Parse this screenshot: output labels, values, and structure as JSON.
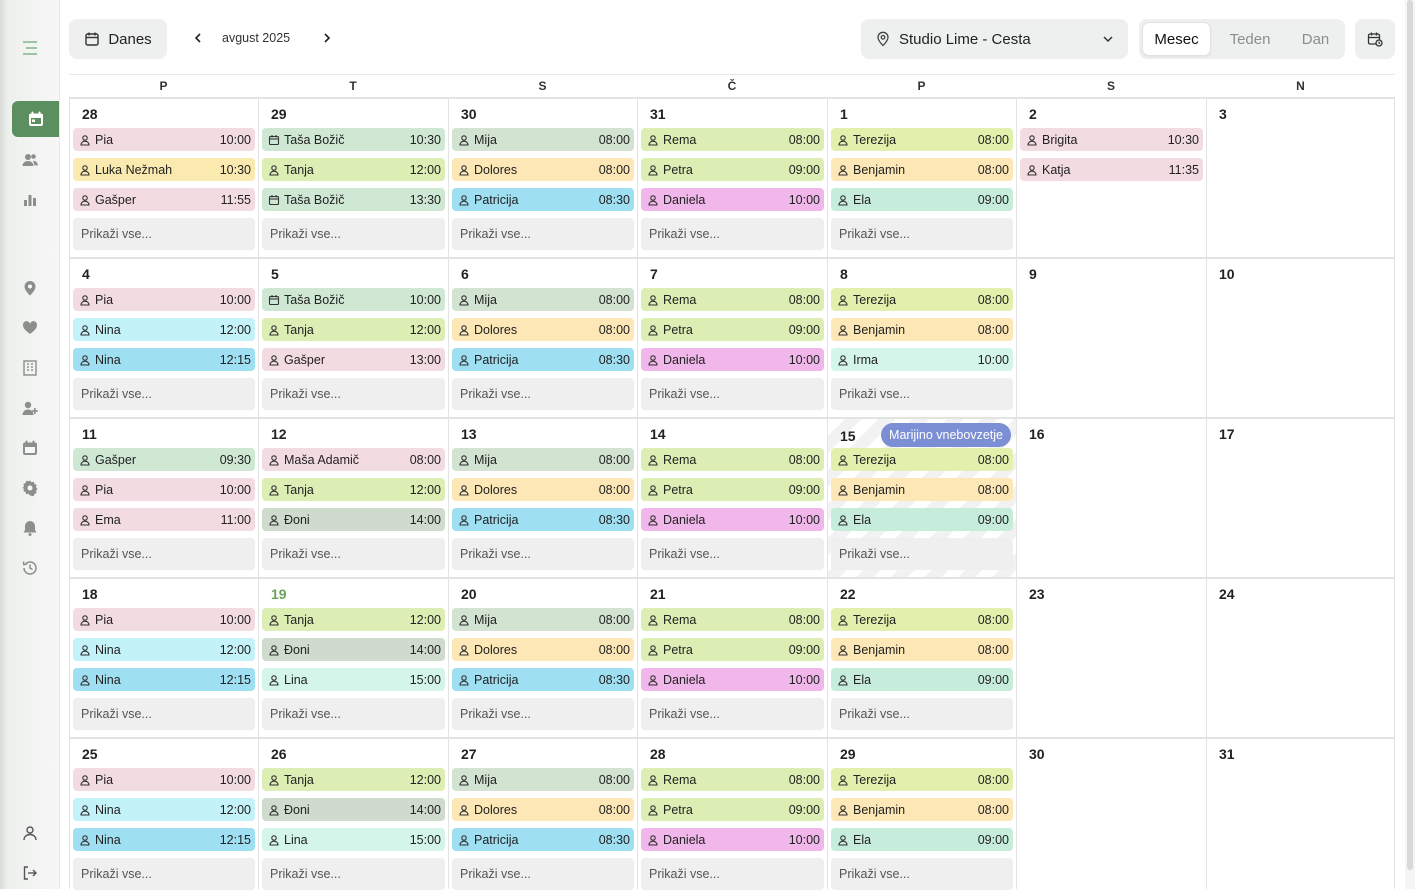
{
  "toolbar": {
    "today_label": "Danes",
    "month_label": "avgust 2025",
    "location": "Studio Lime - Cesta",
    "views": [
      "Mesec",
      "Teden",
      "Dan"
    ],
    "active_view": "Mesec"
  },
  "sidebar": {
    "items": [
      {
        "icon": "menu-icon"
      },
      {
        "icon": "calendar-icon",
        "active": true
      },
      {
        "icon": "users-icon"
      },
      {
        "icon": "bar-chart-icon"
      },
      {
        "icon": "location-pin-icon"
      },
      {
        "icon": "heart-hand-icon"
      },
      {
        "icon": "building-icon"
      },
      {
        "icon": "user-add-icon"
      },
      {
        "icon": "calendar-small-icon"
      },
      {
        "icon": "gear-icon"
      },
      {
        "icon": "bell-icon"
      },
      {
        "icon": "history-icon"
      },
      {
        "icon": "profile-icon"
      },
      {
        "icon": "logout-icon"
      }
    ]
  },
  "weekday_headers": [
    "P",
    "T",
    "S",
    "Č",
    "P",
    "S",
    "N"
  ],
  "show_more_label": "Prikaži vse...",
  "colors": {
    "pink": "#f3dbe2",
    "yellow": "#fbeab0",
    "green": "#cfe8d4",
    "lime": "#ddeeb4",
    "sage": "#d3e3d1",
    "peach": "#fde7b6",
    "cyan": "#9fdff2",
    "magenta": "#f1b6ea",
    "lightgreen": "#e2f0ad",
    "teal": "#c6ecdb",
    "sky": "#c4f2f9",
    "mint": "#d3f5ea",
    "grayGreen": "#cfdccd",
    "accent": "#5b8f5f",
    "holiday": "#7d8fd4"
  },
  "weeks": [
    [
      {
        "day": "28",
        "events": [
          {
            "name": "Pia",
            "time": "10:00",
            "color": "pink",
            "icon": "user"
          },
          {
            "name": "Luka Nežmah",
            "time": "10:30",
            "color": "yellow",
            "icon": "user"
          },
          {
            "name": "Gašper",
            "time": "11:55",
            "color": "pink",
            "icon": "user"
          }
        ],
        "more": true
      },
      {
        "day": "29",
        "events": [
          {
            "name": "Taša Božič",
            "time": "10:30",
            "color": "green",
            "icon": "calendar"
          },
          {
            "name": "Tanja",
            "time": "12:00",
            "color": "lime",
            "icon": "user"
          },
          {
            "name": "Taša Božič",
            "time": "13:30",
            "color": "green",
            "icon": "calendar"
          }
        ],
        "more": true
      },
      {
        "day": "30",
        "events": [
          {
            "name": "Mija",
            "time": "08:00",
            "color": "sage",
            "icon": "user"
          },
          {
            "name": "Dolores",
            "time": "08:00",
            "color": "peach",
            "icon": "user"
          },
          {
            "name": "Patricija",
            "time": "08:30",
            "color": "cyan",
            "icon": "user"
          }
        ],
        "more": true
      },
      {
        "day": "31",
        "events": [
          {
            "name": "Rema",
            "time": "08:00",
            "color": "lime",
            "icon": "user"
          },
          {
            "name": "Petra",
            "time": "09:00",
            "color": "lime",
            "icon": "user"
          },
          {
            "name": "Daniela",
            "time": "10:00",
            "color": "magenta",
            "icon": "user"
          }
        ],
        "more": true
      },
      {
        "day": "1",
        "events": [
          {
            "name": "Terezija",
            "time": "08:00",
            "color": "lightgreen",
            "icon": "user"
          },
          {
            "name": "Benjamin",
            "time": "08:00",
            "color": "peach",
            "icon": "user"
          },
          {
            "name": "Ela",
            "time": "09:00",
            "color": "teal",
            "icon": "user"
          }
        ],
        "more": true
      },
      {
        "day": "2",
        "events": [
          {
            "name": "Brigita",
            "time": "10:30",
            "color": "pink",
            "icon": "user"
          },
          {
            "name": "Katja",
            "time": "11:35",
            "color": "pink",
            "icon": "user"
          }
        ],
        "more": false
      },
      {
        "day": "3",
        "events": [],
        "more": false
      }
    ],
    [
      {
        "day": "4",
        "events": [
          {
            "name": "Pia",
            "time": "10:00",
            "color": "pink",
            "icon": "user"
          },
          {
            "name": "Nina",
            "time": "12:00",
            "color": "sky",
            "icon": "user"
          },
          {
            "name": "Nina",
            "time": "12:15",
            "color": "cyan",
            "icon": "user"
          }
        ],
        "more": true
      },
      {
        "day": "5",
        "events": [
          {
            "name": "Taša Božič",
            "time": "10:00",
            "color": "green",
            "icon": "calendar"
          },
          {
            "name": "Tanja",
            "time": "12:00",
            "color": "lime",
            "icon": "user"
          },
          {
            "name": "Gašper",
            "time": "13:00",
            "color": "pink",
            "icon": "user"
          }
        ],
        "more": true
      },
      {
        "day": "6",
        "events": [
          {
            "name": "Mija",
            "time": "08:00",
            "color": "sage",
            "icon": "user"
          },
          {
            "name": "Dolores",
            "time": "08:00",
            "color": "peach",
            "icon": "user"
          },
          {
            "name": "Patricija",
            "time": "08:30",
            "color": "cyan",
            "icon": "user"
          }
        ],
        "more": true
      },
      {
        "day": "7",
        "events": [
          {
            "name": "Rema",
            "time": "08:00",
            "color": "lime",
            "icon": "user"
          },
          {
            "name": "Petra",
            "time": "09:00",
            "color": "lime",
            "icon": "user"
          },
          {
            "name": "Daniela",
            "time": "10:00",
            "color": "magenta",
            "icon": "user"
          }
        ],
        "more": true
      },
      {
        "day": "8",
        "events": [
          {
            "name": "Terezija",
            "time": "08:00",
            "color": "lightgreen",
            "icon": "user"
          },
          {
            "name": "Benjamin",
            "time": "08:00",
            "color": "peach",
            "icon": "user"
          },
          {
            "name": "Irma",
            "time": "10:00",
            "color": "mint",
            "icon": "user"
          }
        ],
        "more": true
      },
      {
        "day": "9",
        "events": [],
        "more": false
      },
      {
        "day": "10",
        "events": [],
        "more": false
      }
    ],
    [
      {
        "day": "11",
        "events": [
          {
            "name": "Gašper",
            "time": "09:30",
            "color": "green",
            "icon": "user"
          },
          {
            "name": "Pia",
            "time": "10:00",
            "color": "pink",
            "icon": "user"
          },
          {
            "name": "Ema",
            "time": "11:00",
            "color": "pink",
            "icon": "user"
          }
        ],
        "more": true
      },
      {
        "day": "12",
        "events": [
          {
            "name": "Maša Adamič",
            "time": "08:00",
            "color": "pink",
            "icon": "user"
          },
          {
            "name": "Tanja",
            "time": "12:00",
            "color": "lime",
            "icon": "user"
          },
          {
            "name": "Đoni",
            "time": "14:00",
            "color": "grayGreen",
            "icon": "user"
          }
        ],
        "more": true
      },
      {
        "day": "13",
        "events": [
          {
            "name": "Mija",
            "time": "08:00",
            "color": "sage",
            "icon": "user"
          },
          {
            "name": "Dolores",
            "time": "08:00",
            "color": "peach",
            "icon": "user"
          },
          {
            "name": "Patricija",
            "time": "08:30",
            "color": "cyan",
            "icon": "user"
          }
        ],
        "more": true
      },
      {
        "day": "14",
        "events": [
          {
            "name": "Rema",
            "time": "08:00",
            "color": "lime",
            "icon": "user"
          },
          {
            "name": "Petra",
            "time": "09:00",
            "color": "lime",
            "icon": "user"
          },
          {
            "name": "Daniela",
            "time": "10:00",
            "color": "magenta",
            "icon": "user"
          }
        ],
        "more": true
      },
      {
        "day": "15",
        "holiday": "Marijino vnebovzetje",
        "events": [
          {
            "name": "Terezija",
            "time": "08:00",
            "color": "lightgreen",
            "icon": "user"
          },
          {
            "name": "Benjamin",
            "time": "08:00",
            "color": "peach",
            "icon": "user"
          },
          {
            "name": "Ela",
            "time": "09:00",
            "color": "teal",
            "icon": "user"
          }
        ],
        "more": true
      },
      {
        "day": "16",
        "events": [],
        "more": false
      },
      {
        "day": "17",
        "events": [],
        "more": false
      }
    ],
    [
      {
        "day": "18",
        "events": [
          {
            "name": "Pia",
            "time": "10:00",
            "color": "pink",
            "icon": "user"
          },
          {
            "name": "Nina",
            "time": "12:00",
            "color": "sky",
            "icon": "user"
          },
          {
            "name": "Nina",
            "time": "12:15",
            "color": "cyan",
            "icon": "user"
          }
        ],
        "more": true
      },
      {
        "day": "19",
        "today": true,
        "events": [
          {
            "name": "Tanja",
            "time": "12:00",
            "color": "lime",
            "icon": "user"
          },
          {
            "name": "Đoni",
            "time": "14:00",
            "color": "grayGreen",
            "icon": "user"
          },
          {
            "name": "Lina",
            "time": "15:00",
            "color": "mint",
            "icon": "user"
          }
        ],
        "more": true
      },
      {
        "day": "20",
        "events": [
          {
            "name": "Mija",
            "time": "08:00",
            "color": "sage",
            "icon": "user"
          },
          {
            "name": "Dolores",
            "time": "08:00",
            "color": "peach",
            "icon": "user"
          },
          {
            "name": "Patricija",
            "time": "08:30",
            "color": "cyan",
            "icon": "user"
          }
        ],
        "more": true
      },
      {
        "day": "21",
        "events": [
          {
            "name": "Rema",
            "time": "08:00",
            "color": "lime",
            "icon": "user"
          },
          {
            "name": "Petra",
            "time": "09:00",
            "color": "lime",
            "icon": "user"
          },
          {
            "name": "Daniela",
            "time": "10:00",
            "color": "magenta",
            "icon": "user"
          }
        ],
        "more": true
      },
      {
        "day": "22",
        "events": [
          {
            "name": "Terezija",
            "time": "08:00",
            "color": "lightgreen",
            "icon": "user"
          },
          {
            "name": "Benjamin",
            "time": "08:00",
            "color": "peach",
            "icon": "user"
          },
          {
            "name": "Ela",
            "time": "09:00",
            "color": "teal",
            "icon": "user"
          }
        ],
        "more": true
      },
      {
        "day": "23",
        "events": [],
        "more": false
      },
      {
        "day": "24",
        "events": [],
        "more": false
      }
    ],
    [
      {
        "day": "25",
        "events": [
          {
            "name": "Pia",
            "time": "10:00",
            "color": "pink",
            "icon": "user"
          },
          {
            "name": "Nina",
            "time": "12:00",
            "color": "sky",
            "icon": "user"
          },
          {
            "name": "Nina",
            "time": "12:15",
            "color": "cyan",
            "icon": "user"
          }
        ],
        "more": true
      },
      {
        "day": "26",
        "events": [
          {
            "name": "Tanja",
            "time": "12:00",
            "color": "lime",
            "icon": "user"
          },
          {
            "name": "Đoni",
            "time": "14:00",
            "color": "grayGreen",
            "icon": "user"
          },
          {
            "name": "Lina",
            "time": "15:00",
            "color": "mint",
            "icon": "user"
          }
        ],
        "more": true
      },
      {
        "day": "27",
        "events": [
          {
            "name": "Mija",
            "time": "08:00",
            "color": "sage",
            "icon": "user"
          },
          {
            "name": "Dolores",
            "time": "08:00",
            "color": "peach",
            "icon": "user"
          },
          {
            "name": "Patricija",
            "time": "08:30",
            "color": "cyan",
            "icon": "user"
          }
        ],
        "more": true
      },
      {
        "day": "28",
        "events": [
          {
            "name": "Rema",
            "time": "08:00",
            "color": "lime",
            "icon": "user"
          },
          {
            "name": "Petra",
            "time": "09:00",
            "color": "lime",
            "icon": "user"
          },
          {
            "name": "Daniela",
            "time": "10:00",
            "color": "magenta",
            "icon": "user"
          }
        ],
        "more": true
      },
      {
        "day": "29",
        "events": [
          {
            "name": "Terezija",
            "time": "08:00",
            "color": "lightgreen",
            "icon": "user"
          },
          {
            "name": "Benjamin",
            "time": "08:00",
            "color": "peach",
            "icon": "user"
          },
          {
            "name": "Ela",
            "time": "09:00",
            "color": "teal",
            "icon": "user"
          }
        ],
        "more": true
      },
      {
        "day": "30",
        "events": [],
        "more": false
      },
      {
        "day": "31",
        "events": [],
        "more": false
      }
    ]
  ]
}
